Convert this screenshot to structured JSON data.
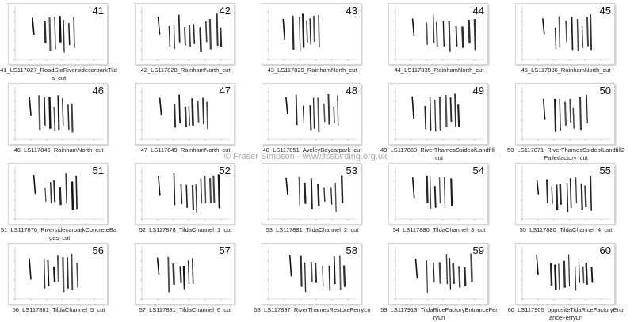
{
  "watermark": "© Fraser Simpson  ·  www.fssbirding.org.uk",
  "items": [
    {
      "number": "41",
      "caption": "41_LS117827_RoadStoRiversidecarparkTilda_cut"
    },
    {
      "number": "42",
      "caption": "42_LS117828_RainhamNorth_cut"
    },
    {
      "number": "43",
      "caption": "43_LS117829_RainhamNorth_cut"
    },
    {
      "number": "44",
      "caption": "44_LS117835_RainhamNorth_cut"
    },
    {
      "number": "45",
      "caption": "45_LS117836_RainhamNorth_cut"
    },
    {
      "number": "46",
      "caption": "46_LS117846_RainhamNorth_cut"
    },
    {
      "number": "47",
      "caption": "47_LS117849_RainhamNorth_cut"
    },
    {
      "number": "48",
      "caption": "48_LS117851_AveleyBaycarpark_cut"
    },
    {
      "number": "49",
      "caption": "49_LS117860_RiverThamesSsideofLandfill_cut"
    },
    {
      "number": "50",
      "caption": "50_LS117871_RiverThamesSsideofLandfill2Palletfactory_cut"
    },
    {
      "number": "51",
      "caption": "51_LS117876_RiversidecarparkConcreteBarges_cut"
    },
    {
      "number": "52",
      "caption": "52_LS117878_TildaChannel_1_cut"
    },
    {
      "number": "53",
      "caption": "53_LS117881_TildaChannel_2_cut"
    },
    {
      "number": "54",
      "caption": "54_LS117880_TildaChannel_3_cut"
    },
    {
      "number": "55",
      "caption": "55_LS117880_TildaChannel_4_cut"
    },
    {
      "number": "56",
      "caption": "56_LS117881_TildaChannel_5_cut"
    },
    {
      "number": "57",
      "caption": "57_LS117881_TildaChannel_6_cut"
    },
    {
      "number": "58",
      "caption": "58_LS117897_RiverThamesRestoreFerryLn"
    },
    {
      "number": "59",
      "caption": "59_LS117913_TildaRiceFactoryEntranceFerryLn"
    },
    {
      "number": "60",
      "caption": "60_LS117905_oppositeTidaRiceFactoryEntranceFerryLn"
    }
  ]
}
